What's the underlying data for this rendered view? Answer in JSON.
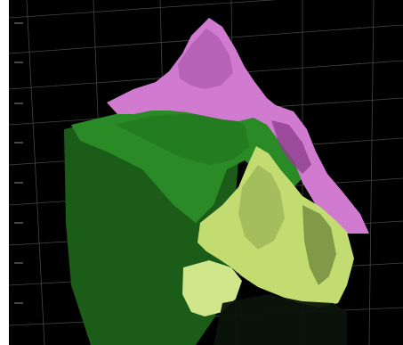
{
  "scene": {
    "background_color": "#000000",
    "grid_color": "#6a6a6a",
    "axis_tick_labels": [],
    "terrain_layers": [
      {
        "name": "magenta-layer",
        "color": "#d277d2"
      },
      {
        "name": "dark-green-layer",
        "color": "#1f6e1c"
      },
      {
        "name": "bright-green-layer",
        "color": "#2f8f2a"
      },
      {
        "name": "yellow-green-layer",
        "color": "#c7e27a"
      }
    ]
  }
}
